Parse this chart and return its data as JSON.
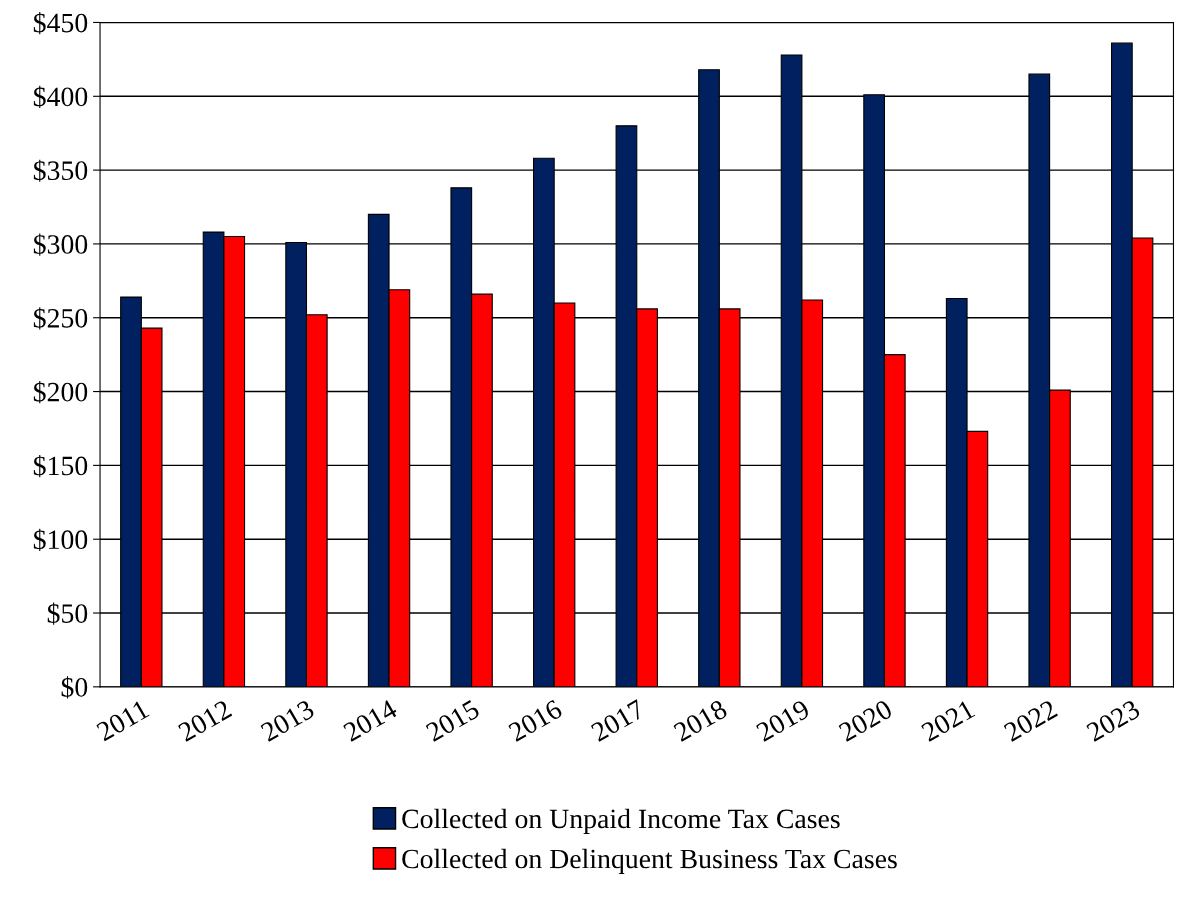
{
  "chart_data": {
    "type": "bar",
    "categories": [
      "2011",
      "2012",
      "2013",
      "2014",
      "2015",
      "2016",
      "2017",
      "2018",
      "2019",
      "2020",
      "2021",
      "2022",
      "2023"
    ],
    "series": [
      {
        "name": "Collected on Unpaid Income Tax Cases",
        "color": "#002060",
        "values": [
          264,
          308,
          301,
          320,
          338,
          358,
          380,
          418,
          428,
          401,
          263,
          415,
          436
        ]
      },
      {
        "name": "Collected on Delinquent Business Tax Cases",
        "color": "#ff0000",
        "values": [
          243,
          305,
          252,
          269,
          266,
          260,
          256,
          256,
          262,
          225,
          173,
          201,
          304
        ]
      }
    ],
    "ylim": [
      0,
      450
    ],
    "yticks": [
      {
        "value": 0,
        "label": "$0"
      },
      {
        "value": 50,
        "label": "$50"
      },
      {
        "value": 100,
        "label": "$100"
      },
      {
        "value": 150,
        "label": "$150"
      },
      {
        "value": 200,
        "label": "$200"
      },
      {
        "value": 250,
        "label": "$250"
      },
      {
        "value": 300,
        "label": "$300"
      },
      {
        "value": 350,
        "label": "$350"
      },
      {
        "value": 400,
        "label": "$400"
      },
      {
        "value": 450,
        "label": "$450"
      }
    ],
    "grid": "y",
    "legend": "bottom"
  }
}
